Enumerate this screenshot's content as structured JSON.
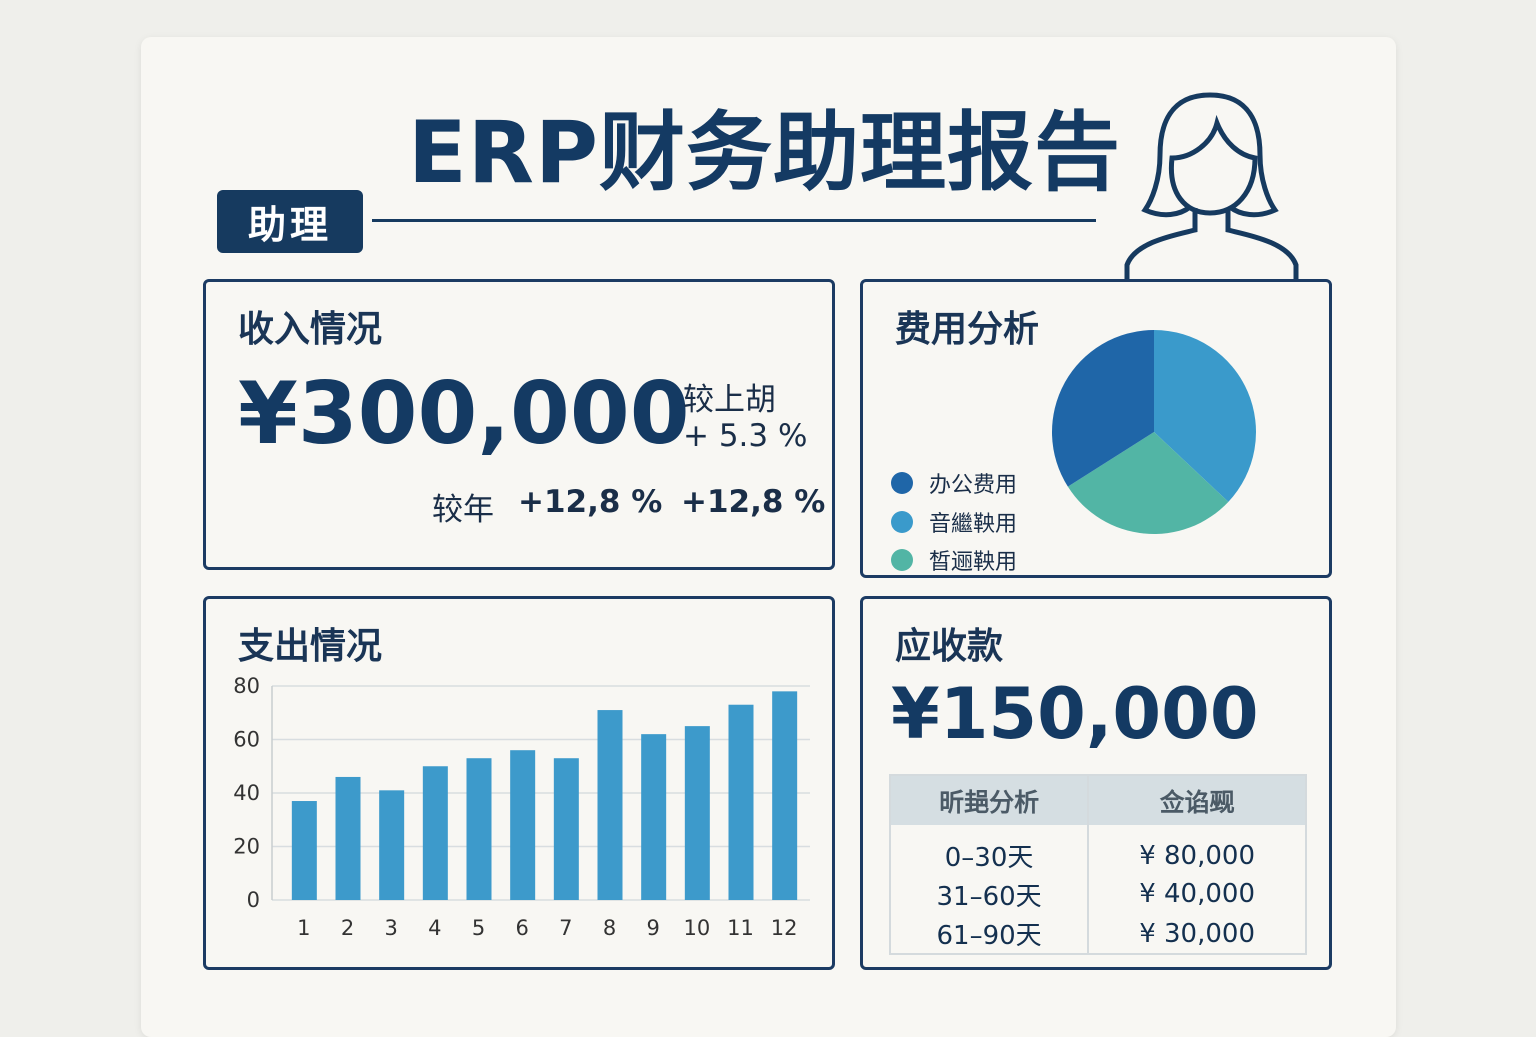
{
  "header": {
    "title": "ERP财务助理报告",
    "tag": "助理"
  },
  "income": {
    "title": "收入情况",
    "amount": "¥300,000",
    "prev_label": "较上胡",
    "prev_change": "+ 5.3 %",
    "year_label": "较年",
    "year_change": "+12,8 %",
    "year_change2": "+12,8 %"
  },
  "expense_analysis": {
    "title": "费用分析",
    "legend": [
      {
        "label": "办公费用",
        "color": "#1f66a8"
      },
      {
        "label": "音繼鞅用",
        "color": "#3a9acb"
      },
      {
        "label": "晳逦鞅用",
        "color": "#52b5a5"
      }
    ]
  },
  "chart_data": {
    "type": "bar",
    "title": "支出情况",
    "categories": [
      "1",
      "2",
      "3",
      "4",
      "5",
      "6",
      "7",
      "8",
      "9",
      "10",
      "11",
      "12"
    ],
    "values": [
      37,
      46,
      41,
      50,
      53,
      56,
      53,
      71,
      62,
      65,
      73,
      78
    ],
    "yticks": [
      "0",
      "20",
      "40",
      "60",
      "80"
    ],
    "ylim": [
      0,
      80
    ],
    "grid": true,
    "color": "#3d9acb"
  },
  "pie_data": {
    "values": [
      34,
      37,
      29
    ],
    "colors": [
      "#1f66a8",
      "#3a9acb",
      "#52b5a5"
    ]
  },
  "receivable": {
    "title": "应收款",
    "amount": "¥150,000",
    "headers": [
      "昕郌分析",
      "佥谄觋"
    ],
    "rows": [
      [
        "0–30天",
        "¥ 80,000"
      ],
      [
        "31–60天",
        "¥ 40,000"
      ],
      [
        "61–90天",
        "¥ 30,000"
      ]
    ]
  }
}
